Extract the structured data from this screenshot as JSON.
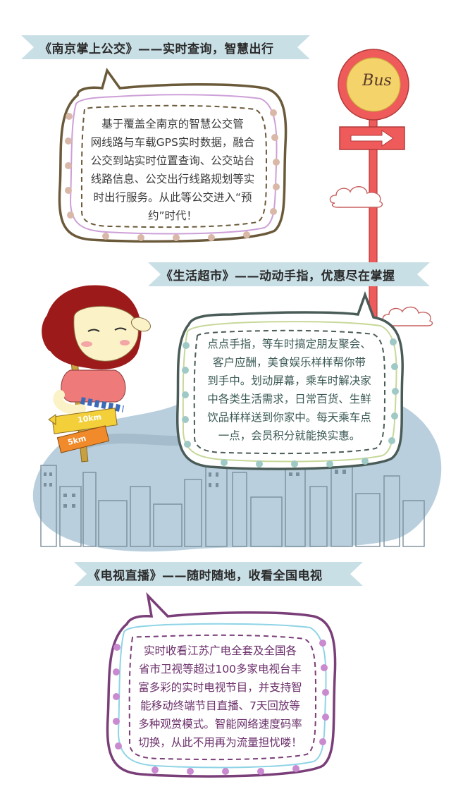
{
  "colors": {
    "banner_bg": "#c9dfe6",
    "section1_bubble_border": "#6b5a3a",
    "section1_dots": "#d9b8a8",
    "section1_text": "#3a3a3a",
    "section2_bubble_border": "#4a5c58",
    "section2_dots": "#9fc9c4",
    "section2_text": "#3b5a55",
    "section3_bubble_border": "#7a3e78",
    "section3_dots": "#c98ad0",
    "section3_text": "#6a2e6a",
    "bus_sign": "#ef5a5a",
    "bus_sign_inner": "#f3d36a",
    "city_splash": "#b9cfdd"
  },
  "sections": [
    {
      "title": "《南京掌上公交》——实时查询，智慧出行",
      "lines": [
        "基于覆盖全南京的智慧公交管",
        "网线路与车载GPS实时数据，融合",
        "公交到站实时位置查询、公交站台",
        "线路信息、公交出行线路规划等实",
        "时出行服务。从此等公交进入“预",
        "约”时代！"
      ]
    },
    {
      "title": "《生活超市》——动动手指，优惠尽在掌握",
      "lines": [
        "点点手指，等车时搞定朋友聚会、",
        "客户应酬，美食娱乐样样帮你带",
        "到手中。划动屏幕，乘车时解决家",
        "中各类生活需求，日常百货、生鲜",
        "饮品样样送到你家中。每天乘车点",
        "一点，会员积分就能换实惠。"
      ]
    },
    {
      "title": "《电视直播》——随时随地，收看全国电视",
      "lines": [
        "实时收看江苏广电全套及全国各",
        "省市卫视等超过100多家电视台丰",
        "富多彩的实时电视节目，并支持智",
        "能移动终端节目直播、7天回放等",
        "多种观赏模式。智能网络速度码率",
        "切换，从此不用再为流量担忧喽！"
      ]
    }
  ],
  "bus_sign": {
    "label": "Bus"
  },
  "direction_sign": {
    "upper": "10km",
    "lower": "5km"
  },
  "icons": [
    "bus-stop-sign-icon",
    "arrow-right-icon",
    "cloud-icon",
    "girl-illustration-icon",
    "city-skyline-icon"
  ]
}
